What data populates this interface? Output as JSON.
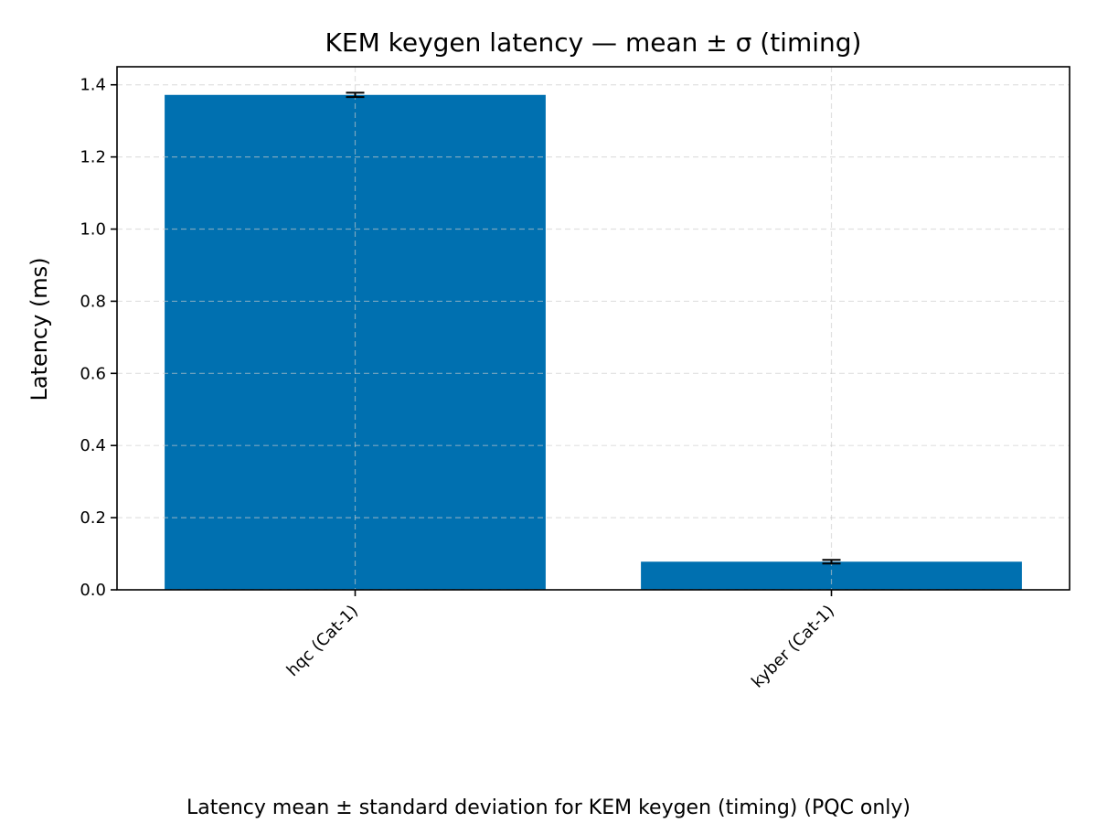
{
  "chart_data": {
    "type": "bar",
    "title": "KEM keygen latency — mean ± σ (timing)",
    "xlabel": "",
    "ylabel": "Latency (ms)",
    "caption": "Latency mean ± standard deviation for KEM keygen (timing) (PQC only)",
    "categories": [
      "hqc (Cat-1)",
      "kyber (Cat-1)"
    ],
    "values": [
      1.372,
      0.078
    ],
    "errors": [
      0.006,
      0.005
    ],
    "ylim": [
      0,
      1.45
    ],
    "yticks": [
      0.0,
      0.2,
      0.4,
      0.6,
      0.8,
      1.0,
      1.2,
      1.4
    ],
    "ytick_labels": [
      "0.0",
      "0.2",
      "0.4",
      "0.6",
      "0.8",
      "1.0",
      "1.2",
      "1.4"
    ],
    "grid": true,
    "legend": "none",
    "colors": {
      "bar": "#0070b0",
      "error_bar": "#000000",
      "grid": "#cccccc",
      "axes": "#000000"
    }
  }
}
